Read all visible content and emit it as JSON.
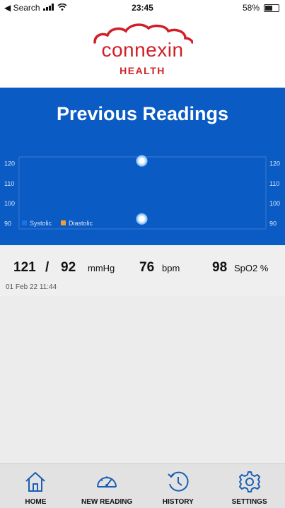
{
  "status_bar": {
    "back_label": "◀ Search",
    "time": "23:45",
    "battery_text": "58%",
    "battery_level": 0.58
  },
  "brand": {
    "name": "connexin",
    "sub": "HEALTH",
    "color": "#d11f26"
  },
  "panel": {
    "title": "Previous Readings",
    "color": "#0a5bc4"
  },
  "chart_data": {
    "type": "scatter",
    "y_ticks_left": [
      "120",
      "110",
      "100",
      "90"
    ],
    "y_ticks_right": [
      "120",
      "110",
      "100",
      "90"
    ],
    "ylim": [
      87,
      123
    ],
    "series": [
      {
        "name": "Systolic",
        "color": "#1a73e8",
        "values": [
          121
        ]
      },
      {
        "name": "Diastolic",
        "color": "#f0a030",
        "values": [
          92
        ]
      }
    ]
  },
  "reading": {
    "systolic": "121",
    "separator": "/",
    "diastolic": "92",
    "bp_unit": "mmHg",
    "pulse": "76",
    "pulse_unit": "bpm",
    "spo2": "98",
    "spo2_unit": "SpO2 %",
    "timestamp": "01 Feb 22 11:44"
  },
  "nav": {
    "items": [
      {
        "label": "HOME",
        "icon": "home-icon"
      },
      {
        "label": "NEW READING",
        "icon": "gauge-icon"
      },
      {
        "label": "HISTORY",
        "icon": "history-icon"
      },
      {
        "label": "SETTINGS",
        "icon": "gear-icon"
      }
    ]
  }
}
